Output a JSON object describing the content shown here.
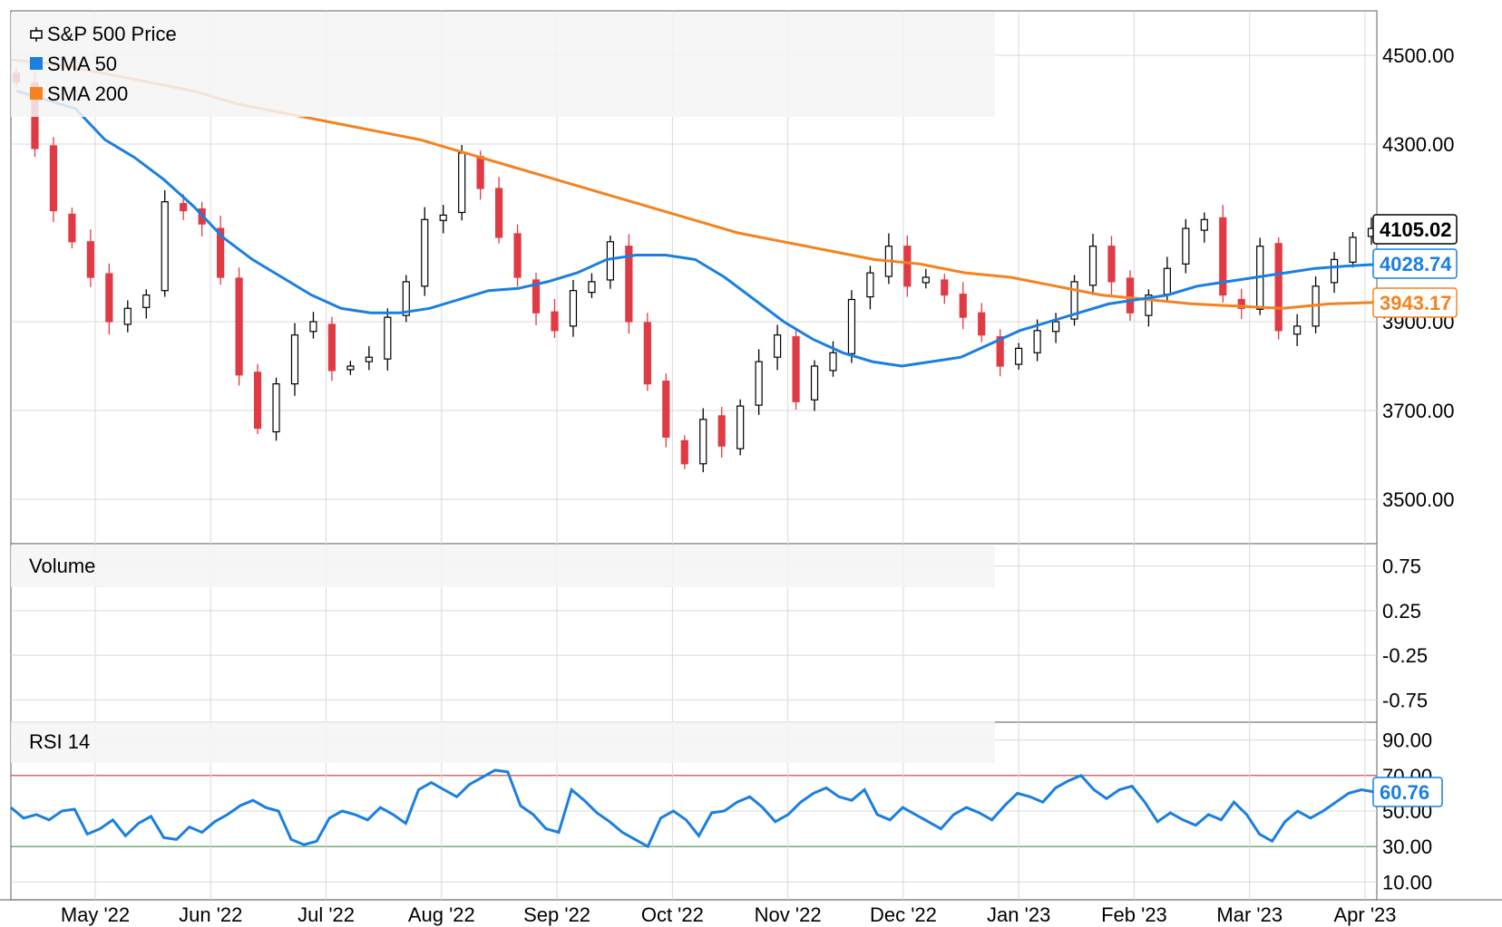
{
  "colors": {
    "up": "#000000",
    "down": "#e03a45",
    "sma50": "#1a7fe0",
    "sma200": "#f58220",
    "rsi": "#1a7fe0",
    "rsi_upper": "#d04040",
    "rsi_lower": "#4a9a4a",
    "grid": "#d9d9d9",
    "panel_bg": "#f6f6f6"
  },
  "chart_data": [
    {
      "type": "candlestick",
      "title": "S&P 500 Price",
      "legend": [
        {
          "name": "S&P 500 Price",
          "icon": "candlestick-icon"
        },
        {
          "name": "SMA 50",
          "color": "#1a7fe0"
        },
        {
          "name": "SMA 200",
          "color": "#f58220"
        }
      ],
      "x_ticks": [
        "May '22",
        "Jun '22",
        "Jul '22",
        "Aug '22",
        "Sep '22",
        "Oct '22",
        "Nov '22",
        "Dec '22",
        "Jan '23",
        "Feb '23",
        "Mar '23",
        "Apr '23"
      ],
      "y_ticks": [
        "4500.00",
        "4300.00",
        "3900.00",
        "3700.00",
        "3500.00"
      ],
      "ylim": [
        3400,
        4600
      ],
      "price_close_series": [
        4440,
        4290,
        4150,
        4080,
        4000,
        3900,
        3930,
        3960,
        4170,
        4150,
        4120,
        4000,
        3780,
        3660,
        3760,
        3870,
        3900,
        3790,
        3800,
        3820,
        3910,
        3990,
        4130,
        4140,
        4280,
        4200,
        4090,
        4000,
        3920,
        3880,
        3970,
        3990,
        4080,
        3900,
        3760,
        3640,
        3580,
        3680,
        3620,
        3710,
        3810,
        3870,
        3720,
        3800,
        3830,
        3950,
        4010,
        4070,
        3980,
        4000,
        3960,
        3910,
        3870,
        3800,
        3840,
        3880,
        3900,
        3990,
        4070,
        3990,
        3920,
        3960,
        4020,
        4110,
        4130,
        3960,
        3930,
        4070,
        3880,
        3890,
        3980,
        4040,
        4090,
        4110
      ],
      "last_close_label": "4105.02",
      "series": [
        {
          "name": "SMA 50",
          "last_label": "4028.74",
          "values": [
            4420,
            4400,
            4380,
            4310,
            4270,
            4220,
            4160,
            4090,
            4040,
            4000,
            3960,
            3930,
            3920,
            3920,
            3930,
            3950,
            3970,
            3975,
            3990,
            4010,
            4040,
            4050,
            4050,
            4040,
            4000,
            3950,
            3900,
            3860,
            3830,
            3810,
            3800,
            3810,
            3820,
            3850,
            3880,
            3900,
            3920,
            3940,
            3950,
            3960,
            3980,
            3990,
            4000,
            4010,
            4020,
            4025,
            4028.74
          ]
        },
        {
          "name": "SMA 200",
          "last_label": "3943.17",
          "values": [
            4490,
            4480,
            4460,
            4440,
            4420,
            4390,
            4370,
            4350,
            4330,
            4310,
            4280,
            4250,
            4220,
            4190,
            4160,
            4130,
            4100,
            4080,
            4060,
            4040,
            4030,
            4010,
            4000,
            3980,
            3960,
            3950,
            3940,
            3935,
            3930,
            3940,
            3943.17
          ]
        }
      ]
    },
    {
      "type": "bar",
      "title": "Volume",
      "y_ticks": [
        "0.75",
        "0.25",
        "-0.25",
        "-0.75"
      ],
      "ylim": [
        -1,
        1
      ],
      "values": []
    },
    {
      "type": "line",
      "title": "RSI 14",
      "y_ticks": [
        "90.00",
        "70.00",
        "50.00",
        "30.00",
        "10.00"
      ],
      "ylim": [
        0,
        100
      ],
      "overbought": 70,
      "oversold": 30,
      "last_label": "60.76",
      "series": [
        {
          "name": "RSI 14",
          "values": [
            52,
            46,
            48,
            45,
            50,
            51,
            37,
            40,
            45,
            36,
            43,
            47,
            35,
            34,
            41,
            38,
            44,
            48,
            53,
            56,
            52,
            50,
            34,
            31,
            33,
            46,
            50,
            48,
            45,
            52,
            48,
            43,
            62,
            66,
            62,
            58,
            65,
            69,
            73,
            72,
            53,
            48,
            40,
            38,
            62,
            56,
            49,
            44,
            38,
            34,
            30,
            46,
            50,
            45,
            36,
            49,
            50,
            55,
            58,
            52,
            44,
            48,
            55,
            60,
            63,
            58,
            56,
            62,
            48,
            45,
            52,
            48,
            44,
            40,
            48,
            52,
            49,
            45,
            53,
            60,
            58,
            55,
            63,
            67,
            70,
            62,
            57,
            62,
            64,
            55,
            44,
            49,
            45,
            42,
            48,
            45,
            55,
            48,
            37,
            33,
            44,
            50,
            46,
            50,
            55,
            60,
            62,
            60.76
          ]
        }
      ]
    }
  ]
}
